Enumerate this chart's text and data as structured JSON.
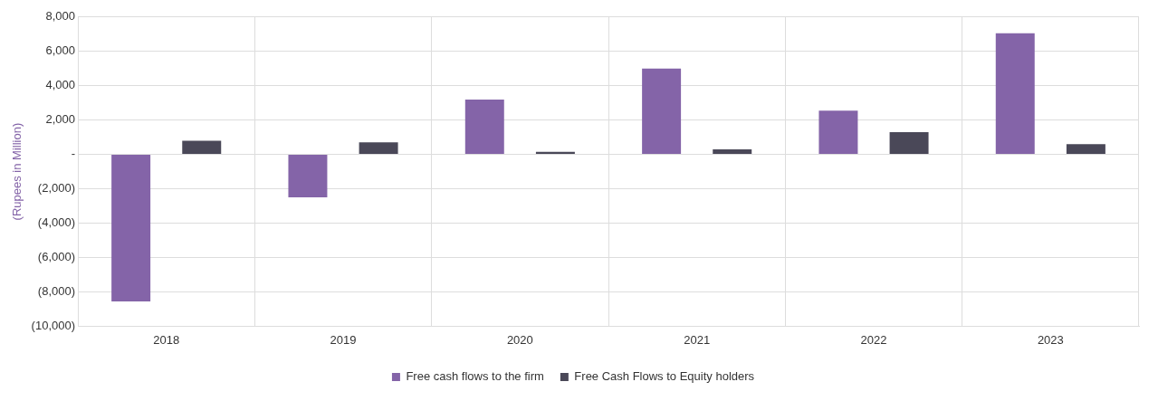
{
  "chart_data": {
    "type": "bar",
    "ylabel": "(Rupees in Million)",
    "categories": [
      "2018",
      "2019",
      "2020",
      "2021",
      "2022",
      "2023"
    ],
    "series": [
      {
        "name": "Free cash flows to the firm",
        "color": "#8464a8",
        "values": [
          -8550,
          -2500,
          3200,
          5000,
          2550,
          7050
        ]
      },
      {
        "name": "Free Cash Flows to Equity holders",
        "color": "#4a4858",
        "values": [
          800,
          700,
          150,
          300,
          1300,
          600
        ]
      }
    ],
    "ylim": [
      -10000,
      8000
    ],
    "yticks": [
      {
        "value": -10000,
        "label": "(10,000)"
      },
      {
        "value": -8000,
        "label": "(8,000)"
      },
      {
        "value": -6000,
        "label": "(6,000)"
      },
      {
        "value": -4000,
        "label": "(4,000)"
      },
      {
        "value": -2000,
        "label": "(2,000)"
      },
      {
        "value": 0,
        "label": "-"
      },
      {
        "value": 2000,
        "label": "2,000"
      },
      {
        "value": 4000,
        "label": "4,000"
      },
      {
        "value": 6000,
        "label": "6,000"
      },
      {
        "value": 8000,
        "label": "8,000"
      }
    ],
    "grid": true,
    "legend": "bottom"
  }
}
